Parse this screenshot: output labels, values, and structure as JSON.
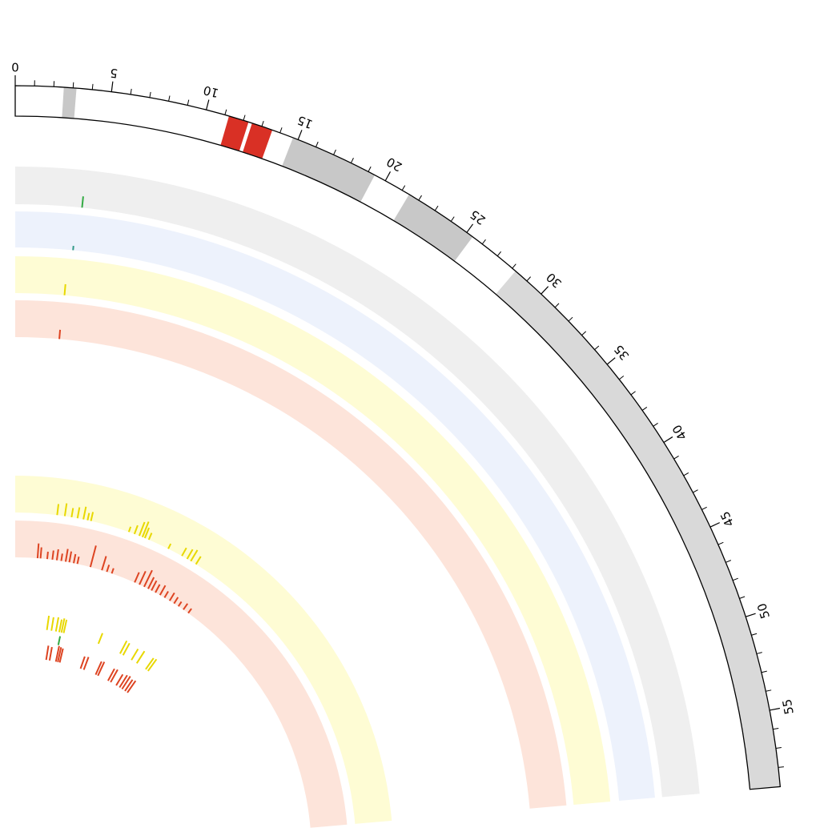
{
  "chart_data": {
    "type": "circos",
    "xlim": [
      0,
      59
    ],
    "xticks": [
      0,
      5,
      10,
      15,
      20,
      25,
      30,
      35,
      40,
      45,
      50,
      55
    ],
    "minor_xticks": [
      1,
      2,
      3,
      4,
      6,
      7,
      8,
      9,
      11,
      12,
      13,
      14,
      16,
      17,
      18,
      19,
      21,
      22,
      23,
      24,
      26,
      27,
      28,
      29,
      31,
      32,
      33,
      34,
      36,
      37,
      38,
      39,
      41,
      42,
      43,
      44,
      46,
      47,
      48,
      49,
      51,
      52,
      53,
      54,
      56,
      57,
      58
    ],
    "ideogram": [
      {
        "start": 2.5,
        "end": 3.2,
        "color": "#c8c8c8"
      },
      {
        "start": 11.2,
        "end": 12.3,
        "color": "#d93025"
      },
      {
        "start": 12.45,
        "end": 13.6,
        "color": "#d93025"
      },
      {
        "start": 14.7,
        "end": 19.4,
        "color": "#c8c8c8"
      },
      {
        "start": 21.4,
        "end": 25.4,
        "color": "#c8c8c8"
      },
      {
        "start": 28.2,
        "end": 59,
        "color": "#d9d9d9"
      }
    ],
    "ylim": [
      0,
      1
    ],
    "tracks": [
      {
        "background": "#efefef",
        "color": "#33aa44",
        "x": [
          4.1
        ],
        "values": [
          0.3
        ]
      },
      {
        "background": "#edf2fc",
        "color": "#339988",
        "x": [
          3.8
        ],
        "values": [
          0.12
        ]
      },
      {
        "background": "#fefcd4",
        "color": "#e8d800",
        "x": [
          3.5
        ],
        "values": [
          0.3
        ]
      },
      {
        "background": "#fde4da",
        "color": "#dd4422",
        "x": [
          3.4
        ],
        "values": [
          0.25
        ]
      },
      {
        "background": "#fefcd4",
        "color": "#e8d800",
        "x": [
          4.9,
          5.8,
          6.6,
          7.3,
          8.0,
          8.5,
          8.9,
          13.5,
          14.2,
          14.8,
          15.2,
          15.5,
          16.0,
          18.5,
          20.3,
          21.0,
          21.5,
          22.2
        ],
        "values": [
          0.3,
          0.35,
          0.25,
          0.3,
          0.35,
          0.2,
          0.25,
          0.15,
          0.25,
          0.4,
          0.45,
          0.3,
          0.2,
          0.15,
          0.25,
          0.3,
          0.35,
          0.25
        ]
      },
      {
        "background": "#fde4da",
        "color": "#dd4422",
        "x": [
          3.0,
          3.4,
          4.3,
          5.0,
          5.6,
          6.2,
          6.8,
          7.3,
          7.9,
          8.4,
          10.2,
          11.8,
          12.5,
          13.2,
          16.5,
          17.2,
          17.9,
          18.5,
          19.0,
          19.6,
          20.3,
          21.0,
          21.8,
          22.5,
          23.2,
          24.0,
          24.8
        ],
        "values": [
          0.4,
          0.3,
          0.2,
          0.25,
          0.3,
          0.2,
          0.35,
          0.3,
          0.25,
          0.2,
          0.6,
          0.4,
          0.2,
          0.15,
          0.3,
          0.4,
          0.5,
          0.35,
          0.3,
          0.25,
          0.3,
          0.2,
          0.25,
          0.2,
          0.15,
          0.2,
          0.15
        ]
      },
      {
        "color": "#e8d800",
        "x": [
          5.6,
          6.4,
          7.2,
          7.8,
          8.2,
          8.6,
          15.0,
          19.2,
          19.8,
          21.5,
          22.6,
          24.5,
          25.0
        ],
        "values": [
          0.9,
          0.85,
          0.9,
          0.8,
          0.9,
          0.85,
          0.7,
          0.9,
          0.85,
          0.8,
          0.9,
          0.85,
          0.9
        ]
      },
      {
        "color": "#33aa44",
        "x": [
          8.1
        ],
        "values": [
          0.8
        ]
      },
      {
        "color": "#dd4422",
        "x": [
          6.3,
          7.0,
          8.3,
          8.7,
          9.1,
          13.5,
          14.2,
          16.8,
          17.3,
          19.6,
          20.2,
          21.5,
          22.3,
          22.9,
          23.6,
          24.2
        ],
        "values": [
          0.9,
          0.85,
          1,
          0.95,
          0.9,
          0.8,
          0.85,
          0.9,
          0.95,
          0.85,
          0.9,
          0.8,
          0.9,
          0.95,
          0.85,
          0.9
        ]
      }
    ]
  }
}
